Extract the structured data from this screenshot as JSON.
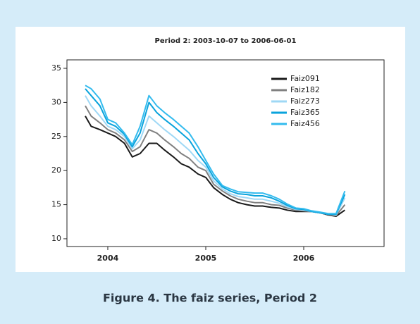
{
  "chart_data": {
    "type": "line",
    "title": "Period 2: 2003-10-07 to 2006-06-01",
    "caption": "Figure 4. The faiz series, Period 2",
    "x": [
      2003.77,
      2003.83,
      2003.92,
      2004.0,
      2004.08,
      2004.17,
      2004.25,
      2004.33,
      2004.42,
      2004.5,
      2004.58,
      2004.67,
      2004.75,
      2004.83,
      2004.92,
      2005.0,
      2005.08,
      2005.17,
      2005.25,
      2005.33,
      2005.42,
      2005.5,
      2005.58,
      2005.67,
      2005.75,
      2005.83,
      2005.92,
      2006.0,
      2006.08,
      2006.17,
      2006.25,
      2006.33,
      2006.42
    ],
    "series": [
      {
        "name": "Faiz091",
        "color": "#1a1a1a",
        "values": [
          28,
          26.5,
          26,
          25.5,
          25,
          24,
          22,
          22.5,
          24,
          24,
          23,
          22,
          21,
          20.5,
          19.5,
          19,
          17.5,
          16.5,
          15.8,
          15.3,
          15,
          14.8,
          14.8,
          14.6,
          14.5,
          14.2,
          14,
          14,
          14,
          13.8,
          13.5,
          13.3,
          14.2
        ]
      },
      {
        "name": "Faiz182",
        "color": "#808080",
        "values": [
          29.5,
          28,
          27,
          26,
          25.5,
          24.5,
          22.8,
          23.5,
          26,
          25.5,
          24.5,
          23.5,
          22.5,
          21.8,
          20.5,
          20,
          18,
          17,
          16.3,
          15.8,
          15.5,
          15.3,
          15.3,
          15,
          14.9,
          14.5,
          14.2,
          14.1,
          14,
          13.8,
          13.6,
          13.4,
          15
        ]
      },
      {
        "name": "Faiz273",
        "color": "#9fd8f5",
        "values": [
          31,
          29.5,
          28,
          26.5,
          26,
          25,
          23.2,
          24.5,
          28,
          27,
          26,
          25,
          24,
          23,
          21.5,
          20.5,
          18.5,
          17.3,
          16.6,
          16.2,
          16,
          15.8,
          15.8,
          15.5,
          15.2,
          14.7,
          14.3,
          14.2,
          14,
          13.8,
          13.6,
          13.5,
          16
        ]
      },
      {
        "name": "Faiz365",
        "color": "#0aa3dc",
        "values": [
          32,
          31,
          29.5,
          27,
          26.5,
          25.3,
          23.5,
          25.5,
          30,
          28.5,
          27.5,
          26.5,
          25.5,
          24.5,
          22.5,
          21,
          19,
          17.6,
          17,
          16.6,
          16.5,
          16.3,
          16.3,
          16,
          15.5,
          14.9,
          14.4,
          14.3,
          14,
          13.8,
          13.6,
          13.6,
          16.5
        ]
      },
      {
        "name": "Faiz456",
        "color": "#33bbee",
        "values": [
          32.5,
          32,
          30.5,
          27.5,
          27,
          25.5,
          23.8,
          26.5,
          31,
          29.5,
          28.5,
          27.5,
          26.5,
          25.5,
          23.5,
          21.5,
          19.5,
          17.8,
          17.3,
          16.9,
          16.8,
          16.7,
          16.7,
          16.3,
          15.8,
          15.1,
          14.5,
          14.4,
          14.1,
          13.9,
          13.7,
          13.7,
          17
        ]
      }
    ],
    "xlim": [
      2003.583,
      2006.82
    ],
    "xticks": [
      2004,
      2005,
      2006
    ],
    "ylim": [
      8.86,
      36.24
    ],
    "yticks": [
      10,
      15,
      20,
      25,
      30,
      35
    ],
    "legend": "upper right"
  }
}
